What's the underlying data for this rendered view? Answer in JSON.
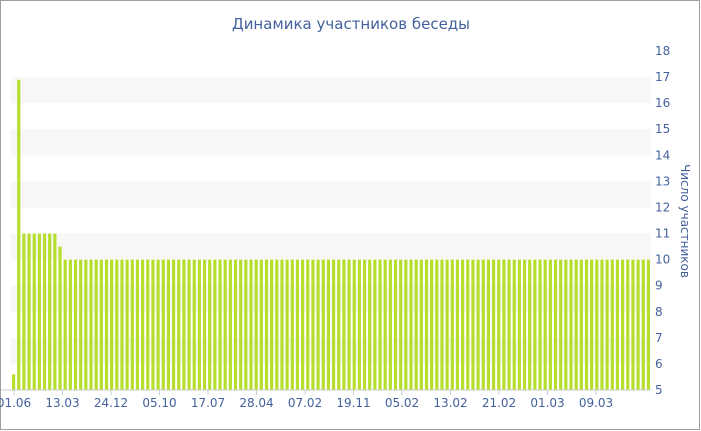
{
  "chart_data": {
    "type": "bar",
    "title": "Динамика участников беседы",
    "xlabel": "",
    "ylabel": "Число участников",
    "y_axis_side": "right",
    "ylim": [
      5,
      18
    ],
    "y_ticks": [
      5,
      6,
      7,
      8,
      9,
      10,
      11,
      12,
      13,
      14,
      15,
      16,
      17,
      18
    ],
    "x_tick_labels": [
      "01.06",
      "13.03",
      "24.12",
      "05.10",
      "17.07",
      "28.04",
      "07.02",
      "19.11",
      "05.02",
      "13.02",
      "21.02",
      "01.03",
      "09.03"
    ],
    "grid": "alternating horizontal bands",
    "bar_color": "#b5df2c",
    "band_color": "#f7f7f7",
    "text_color": "#44619c",
    "values": [
      5.6,
      16.9,
      11,
      11,
      11,
      11,
      11,
      11,
      11,
      10.5,
      10,
      10,
      10,
      10,
      10,
      10,
      10,
      10,
      10,
      10,
      10,
      10,
      10,
      10,
      10,
      10,
      10,
      10,
      10,
      10,
      10,
      10,
      10,
      10,
      10,
      10,
      10,
      10,
      10,
      10,
      10,
      10,
      10,
      10,
      10,
      10,
      10,
      10,
      10,
      10,
      10,
      10,
      10,
      10,
      10,
      10,
      10,
      10,
      10,
      10,
      10,
      10,
      10,
      10,
      10,
      10,
      10,
      10,
      10,
      10,
      10,
      10,
      10,
      10,
      10,
      10,
      10,
      10,
      10,
      10,
      10,
      10,
      10,
      10,
      10,
      10,
      10,
      10,
      10,
      10,
      10,
      10,
      10,
      10,
      10,
      10,
      10,
      10,
      10,
      10,
      10,
      10,
      10,
      10,
      10,
      10,
      10,
      10,
      10,
      10,
      10,
      10,
      10,
      10,
      10,
      10,
      10,
      10,
      10,
      10,
      10,
      10,
      10,
      10
    ]
  }
}
